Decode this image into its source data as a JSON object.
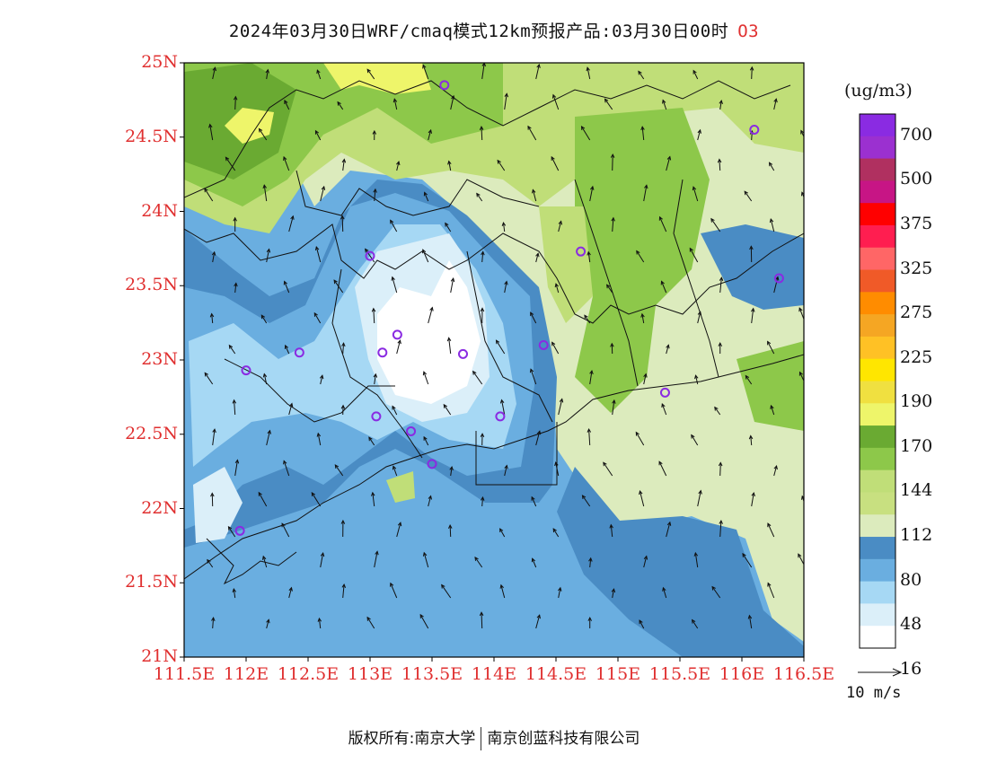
{
  "title": {
    "main": "2024年03月30日WRF/cmaq模式12km预报产品:03月30日00时",
    "pollutant": "O3"
  },
  "axes": {
    "y_ticks": [
      "25N",
      "24.5N",
      "24N",
      "23.5N",
      "23N",
      "22.5N",
      "22N",
      "21.5N",
      "21N"
    ],
    "x_ticks": [
      "111.5E",
      "112E",
      "112.5E",
      "113E",
      "113.5E",
      "114E",
      "114.5E",
      "115E",
      "115.5E",
      "116E",
      "116.5E"
    ],
    "lon_range": [
      111.5,
      116.5
    ],
    "lat_range": [
      21,
      25
    ]
  },
  "colorbar": {
    "unit": "(ug/m3)",
    "levels": [
      "700",
      "500",
      "375",
      "325",
      "275",
      "225",
      "190",
      "170",
      "144",
      "112",
      "80",
      "48",
      "16"
    ],
    "colors_top_to_bottom": [
      "#8a2be2",
      "#9b30d0",
      "#b03060",
      "#c71585",
      "#ff0000",
      "#ff1e50",
      "#ff6666",
      "#f05a28",
      "#ff8c00",
      "#f5a623",
      "#ffc125",
      "#ffe600",
      "#f0e040",
      "#eef56a",
      "#6aaa32",
      "#8dc84a",
      "#c0de78",
      "#c8e080",
      "#dcebbd",
      "#4a8cc4",
      "#6aaee0",
      "#a6d8f4",
      "#dbeff9",
      "#ffffff"
    ]
  },
  "wind_reference": {
    "label": "10 m/s"
  },
  "stations": [
    {
      "lon": 113.6,
      "lat": 24.85
    },
    {
      "lon": 116.1,
      "lat": 24.55
    },
    {
      "lon": 113.0,
      "lat": 23.7
    },
    {
      "lon": 114.7,
      "lat": 23.73
    },
    {
      "lon": 116.3,
      "lat": 23.55
    },
    {
      "lon": 112.43,
      "lat": 23.05
    },
    {
      "lon": 113.1,
      "lat": 23.05
    },
    {
      "lon": 113.22,
      "lat": 23.17
    },
    {
      "lon": 113.75,
      "lat": 23.04
    },
    {
      "lon": 114.4,
      "lat": 23.1
    },
    {
      "lon": 112.0,
      "lat": 22.93
    },
    {
      "lon": 115.38,
      "lat": 22.78
    },
    {
      "lon": 113.05,
      "lat": 22.62
    },
    {
      "lon": 113.33,
      "lat": 22.52
    },
    {
      "lon": 114.05,
      "lat": 22.62
    },
    {
      "lon": 113.5,
      "lat": 22.3
    },
    {
      "lon": 111.95,
      "lat": 21.85
    }
  ],
  "footer": {
    "left": "版权所有:南京大学",
    "right": "南京创蓝科技有限公司"
  }
}
